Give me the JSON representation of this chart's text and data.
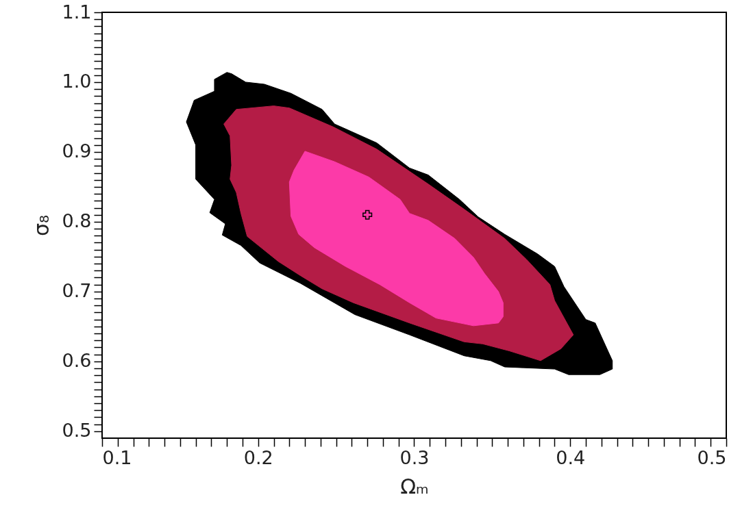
{
  "chart_data": {
    "type": "area",
    "xlabel": "Ωₘ",
    "ylabel": "σ₈",
    "xlim": [
      0.1,
      0.5
    ],
    "ylim": [
      0.49,
      1.1
    ],
    "xticks": [
      0.1,
      {
        "value": 0.11,
        "label": null
      },
      {
        "value": 0.12,
        "label": null
      },
      {
        "value": 0.13,
        "label": null
      },
      {
        "value": 0.14,
        "label": null
      },
      {
        "value": 0.15,
        "label": null
      },
      {
        "value": 0.16,
        "label": null
      },
      {
        "value": 0.17,
        "label": null
      },
      {
        "value": 0.18,
        "label": null
      },
      {
        "value": 0.19,
        "label": null
      },
      0.2,
      {
        "value": 0.21,
        "label": null
      },
      {
        "value": 0.22,
        "label": null
      },
      {
        "value": 0.23,
        "label": null
      },
      {
        "value": 0.24,
        "label": null
      },
      {
        "value": 0.25,
        "label": null
      },
      {
        "value": 0.26,
        "label": null
      },
      {
        "value": 0.27,
        "label": null
      },
      {
        "value": 0.28,
        "label": null
      },
      {
        "value": 0.29,
        "label": null
      },
      0.3,
      {
        "value": 0.31,
        "label": null
      },
      {
        "value": 0.32,
        "label": null
      },
      {
        "value": 0.33,
        "label": null
      },
      {
        "value": 0.34,
        "label": null
      },
      {
        "value": 0.35,
        "label": null
      },
      {
        "value": 0.36,
        "label": null
      },
      {
        "value": 0.37,
        "label": null
      },
      {
        "value": 0.38,
        "label": null
      },
      {
        "value": 0.39,
        "label": null
      },
      0.4,
      {
        "value": 0.41,
        "label": null
      },
      {
        "value": 0.42,
        "label": null
      },
      {
        "value": 0.43,
        "label": null
      },
      {
        "value": 0.44,
        "label": null
      },
      {
        "value": 0.45,
        "label": null
      },
      {
        "value": 0.46,
        "label": null
      },
      {
        "value": 0.47,
        "label": null
      },
      {
        "value": 0.48,
        "label": null
      },
      {
        "value": 0.49,
        "label": null
      },
      0.5
    ],
    "yticks": [
      0.5,
      {
        "value": 0.51,
        "label": null
      },
      {
        "value": 0.52,
        "label": null
      },
      {
        "value": 0.53,
        "label": null
      },
      {
        "value": 0.54,
        "label": null
      },
      {
        "value": 0.55,
        "label": null
      },
      {
        "value": 0.56,
        "label": null
      },
      {
        "value": 0.57,
        "label": null
      },
      {
        "value": 0.58,
        "label": null
      },
      {
        "value": 0.59,
        "label": null
      },
      0.6,
      {
        "value": 0.61,
        "label": null
      },
      {
        "value": 0.62,
        "label": null
      },
      {
        "value": 0.63,
        "label": null
      },
      {
        "value": 0.64,
        "label": null
      },
      {
        "value": 0.65,
        "label": null
      },
      {
        "value": 0.66,
        "label": null
      },
      {
        "value": 0.67,
        "label": null
      },
      {
        "value": 0.68,
        "label": null
      },
      {
        "value": 0.69,
        "label": null
      },
      0.7,
      {
        "value": 0.71,
        "label": null
      },
      {
        "value": 0.72,
        "label": null
      },
      {
        "value": 0.73,
        "label": null
      },
      {
        "value": 0.74,
        "label": null
      },
      {
        "value": 0.75,
        "label": null
      },
      {
        "value": 0.76,
        "label": null
      },
      {
        "value": 0.77,
        "label": null
      },
      {
        "value": 0.78,
        "label": null
      },
      {
        "value": 0.79,
        "label": null
      },
      0.8,
      {
        "value": 0.81,
        "label": null
      },
      {
        "value": 0.82,
        "label": null
      },
      {
        "value": 0.83,
        "label": null
      },
      {
        "value": 0.84,
        "label": null
      },
      {
        "value": 0.85,
        "label": null
      },
      {
        "value": 0.86,
        "label": null
      },
      {
        "value": 0.87,
        "label": null
      },
      {
        "value": 0.88,
        "label": null
      },
      {
        "value": 0.89,
        "label": null
      },
      0.9,
      {
        "value": 0.91,
        "label": null
      },
      {
        "value": 0.92,
        "label": null
      },
      {
        "value": 0.93,
        "label": null
      },
      {
        "value": 0.94,
        "label": null
      },
      {
        "value": 0.95,
        "label": null
      },
      {
        "value": 0.96,
        "label": null
      },
      {
        "value": 0.97,
        "label": null
      },
      {
        "value": 0.98,
        "label": null
      },
      {
        "value": 0.99,
        "label": null
      },
      {
        "value": 1,
        "label": "1.0"
      },
      {
        "value": 1.01,
        "label": null
      },
      {
        "value": 1.02,
        "label": null
      },
      {
        "value": 1.03,
        "label": null
      },
      {
        "value": 1.04,
        "label": null
      },
      {
        "value": 1.05,
        "label": null
      },
      {
        "value": 1.06,
        "label": null
      },
      {
        "value": 1.07,
        "label": null
      },
      {
        "value": 1.08,
        "label": null
      },
      {
        "value": 1.09,
        "label": null
      },
      1.1
    ],
    "series": [
      {
        "color": "#000000",
        "x": [
          0.18,
          0.172,
          0.172,
          0.159,
          0.154,
          0.16,
          0.16,
          0.172,
          0.169,
          0.179,
          0.177,
          0.189,
          0.201,
          0.227,
          0.262,
          0.297,
          0.332,
          0.349,
          0.358,
          0.39,
          0.399,
          0.419,
          0.427,
          0.427,
          0.416,
          0.41,
          0.396,
          0.39,
          0.379,
          0.358,
          0.341,
          0.329,
          0.309,
          0.297,
          0.276,
          0.249,
          0.241,
          0.221,
          0.204,
          0.192,
          0.183
        ],
        "values": [
          1.014,
          1.004,
          0.987,
          0.974,
          0.943,
          0.91,
          0.861,
          0.832,
          0.813,
          0.797,
          0.781,
          0.766,
          0.741,
          0.712,
          0.667,
          0.638,
          0.608,
          0.601,
          0.592,
          0.589,
          0.581,
          0.581,
          0.589,
          0.601,
          0.655,
          0.66,
          0.707,
          0.736,
          0.754,
          0.782,
          0.807,
          0.832,
          0.867,
          0.877,
          0.913,
          0.94,
          0.961,
          0.984,
          0.997,
          1.0,
          1.012
        ]
      },
      {
        "color": "#b41c46",
        "x": [
          0.178,
          0.186,
          0.21,
          0.22,
          0.248,
          0.276,
          0.309,
          0.332,
          0.358,
          0.372,
          0.387,
          0.39,
          0.402,
          0.394,
          0.381,
          0.361,
          0.344,
          0.332,
          0.297,
          0.261,
          0.241,
          0.227,
          0.213,
          0.193,
          0.189,
          0.186,
          0.182,
          0.183,
          0.182
        ],
        "values": [
          0.94,
          0.961,
          0.966,
          0.963,
          0.936,
          0.904,
          0.854,
          0.818,
          0.776,
          0.746,
          0.71,
          0.687,
          0.638,
          0.618,
          0.601,
          0.615,
          0.625,
          0.628,
          0.655,
          0.684,
          0.704,
          0.723,
          0.743,
          0.779,
          0.812,
          0.842,
          0.861,
          0.881,
          0.923
        ]
      },
      {
        "color": "#fc3aa8",
        "x": [
          0.23,
          0.249,
          0.271,
          0.291,
          0.297,
          0.309,
          0.326,
          0.338,
          0.345,
          0.354,
          0.357,
          0.357,
          0.354,
          0.338,
          0.314,
          0.297,
          0.278,
          0.256,
          0.236,
          0.226,
          0.221,
          0.22,
          0.223
        ],
        "values": [
          0.901,
          0.886,
          0.864,
          0.832,
          0.812,
          0.802,
          0.776,
          0.749,
          0.726,
          0.7,
          0.684,
          0.664,
          0.655,
          0.651,
          0.662,
          0.684,
          0.71,
          0.736,
          0.763,
          0.782,
          0.808,
          0.857,
          0.874
        ]
      },
      {
        "type": "scatter",
        "marker": "cross",
        "color": "#000000",
        "x": [
          0.27
        ],
        "values": [
          0.81
        ]
      }
    ]
  }
}
